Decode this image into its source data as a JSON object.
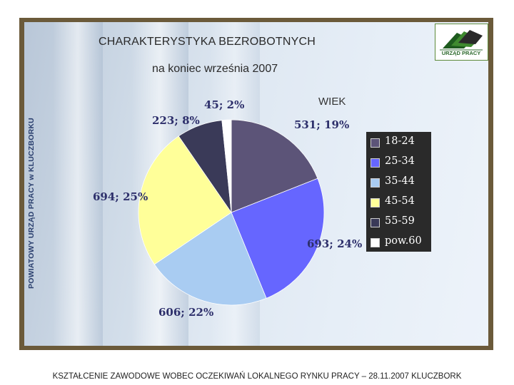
{
  "header": {
    "title": "CHARAKTERYSTYKA BEZROBOTNYCH",
    "subtitle": "na koniec września 2007"
  },
  "sidebar": {
    "vertical_label": "POWIATOWY URZĄD PRACY  w KLUCZBORKU"
  },
  "logo": {
    "text": "URZĄD PRACY",
    "icon": "labor-office-logo-icon",
    "colors": {
      "green": "#2d6a2d",
      "dark": "#222222"
    }
  },
  "footer": {
    "text": "KSZTAŁCENIE ZAWODOWE WOBEC OCZEKIWAŃ LOKALNEGO RYNKU PRACY – 28.11.2007 KLUCZBORK"
  },
  "chart_data": {
    "type": "pie",
    "title": "WIEK",
    "start_angle_deg": 0,
    "direction": "clockwise",
    "slices": [
      {
        "category": "18-24",
        "value": 531,
        "percent": 19,
        "label": "531; 19%",
        "color": "#5c5478"
      },
      {
        "category": "25-34",
        "value": 693,
        "percent": 24,
        "label": "693; 24%",
        "color": "#6666ff"
      },
      {
        "category": "35-44",
        "value": 606,
        "percent": 22,
        "label": "606; 22%",
        "color": "#a9ccf2"
      },
      {
        "category": "45-54",
        "value": 694,
        "percent": 25,
        "label": "694; 25%",
        "color": "#ffff99"
      },
      {
        "category": "55-59",
        "value": 223,
        "percent": 8,
        "label": "223; 8%",
        "color": "#3a3a58"
      },
      {
        "category": "pow.60",
        "value": 45,
        "percent": 2,
        "label": "45; 2%",
        "color": "#ffffff"
      }
    ],
    "legend": [
      "18-24",
      "25-34",
      "35-44",
      "45-54",
      "55-59",
      "pow.60"
    ],
    "legend_placement": "right"
  }
}
